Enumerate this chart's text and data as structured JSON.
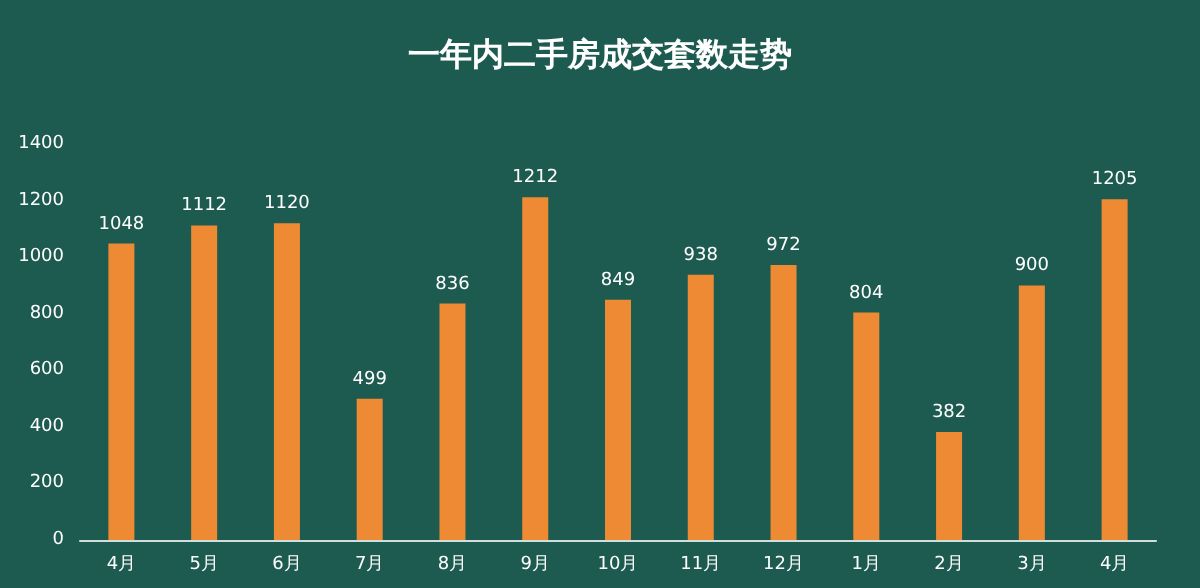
{
  "chart_data": {
    "type": "bar",
    "title": "一年内二手房成交套数走势",
    "categories": [
      "4月",
      "5月",
      "6月",
      "7月",
      "8月",
      "9月",
      "10月",
      "11月",
      "12月",
      "1月",
      "2月",
      "3月",
      "4月"
    ],
    "values": [
      1048,
      1112,
      1120,
      499,
      836,
      1212,
      849,
      938,
      972,
      804,
      382,
      900,
      1205
    ],
    "color": "#ee8a34",
    "ylim": [
      0,
      1400
    ],
    "yticks": [
      0,
      200,
      400,
      600,
      800,
      1000,
      1200,
      1400
    ],
    "grid": false,
    "data_labels": true
  }
}
